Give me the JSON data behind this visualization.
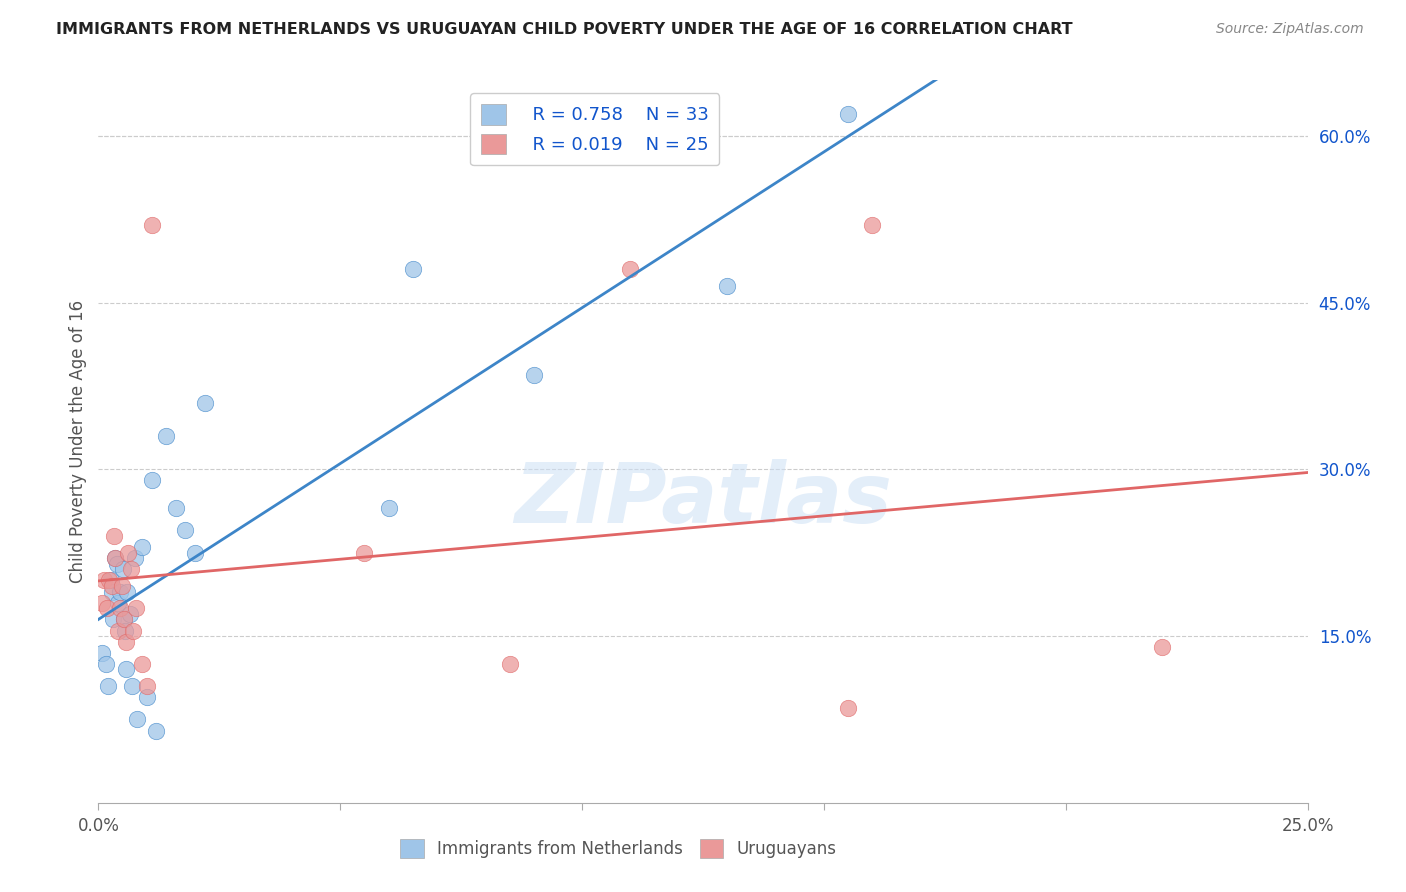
{
  "title": "IMMIGRANTS FROM NETHERLANDS VS URUGUAYAN CHILD POVERTY UNDER THE AGE OF 16 CORRELATION CHART",
  "source": "Source: ZipAtlas.com",
  "ylabel": "Child Poverty Under the Age of 16",
  "xlim": [
    0.0,
    0.25
  ],
  "ylim": [
    0.0,
    0.65
  ],
  "x_ticks": [
    0.0,
    0.05,
    0.1,
    0.15,
    0.2,
    0.25
  ],
  "x_tick_labels": [
    "0.0%",
    "",
    "",
    "",
    "",
    "25.0%"
  ],
  "y_ticks_right": [
    0.15,
    0.3,
    0.45,
    0.6
  ],
  "y_tick_labels_right": [
    "15.0%",
    "30.0%",
    "45.0%",
    "60.0%"
  ],
  "blue_color": "#9fc5e8",
  "pink_color": "#ea9999",
  "blue_line_color": "#3d85c8",
  "pink_line_color": "#e06666",
  "legend_text_color": "#1155cc",
  "watermark": "ZIPatlas",
  "legend_label1": "Immigrants from Netherlands",
  "legend_label2": "Uruguayans",
  "blue_x": [
    0.0008,
    0.0015,
    0.002,
    0.0025,
    0.0028,
    0.003,
    0.0035,
    0.0038,
    0.004,
    0.0045,
    0.005,
    0.0052,
    0.0055,
    0.0058,
    0.006,
    0.0065,
    0.007,
    0.0075,
    0.008,
    0.009,
    0.01,
    0.011,
    0.012,
    0.014,
    0.016,
    0.018,
    0.02,
    0.022,
    0.06,
    0.065,
    0.09,
    0.13,
    0.155
  ],
  "blue_y": [
    0.135,
    0.125,
    0.105,
    0.2,
    0.19,
    0.165,
    0.22,
    0.215,
    0.18,
    0.19,
    0.21,
    0.165,
    0.155,
    0.12,
    0.19,
    0.17,
    0.105,
    0.22,
    0.075,
    0.23,
    0.095,
    0.29,
    0.065,
    0.33,
    0.265,
    0.245,
    0.225,
    0.36,
    0.265,
    0.48,
    0.385,
    0.465,
    0.62
  ],
  "pink_x": [
    0.0008,
    0.0012,
    0.0018,
    0.0022,
    0.0028,
    0.0032,
    0.0035,
    0.004,
    0.0045,
    0.0048,
    0.0052,
    0.0058,
    0.0062,
    0.0068,
    0.0072,
    0.0078,
    0.009,
    0.01,
    0.011,
    0.055,
    0.085,
    0.11,
    0.155,
    0.16,
    0.22
  ],
  "pink_y": [
    0.18,
    0.2,
    0.175,
    0.2,
    0.195,
    0.24,
    0.22,
    0.155,
    0.175,
    0.195,
    0.165,
    0.145,
    0.225,
    0.21,
    0.155,
    0.175,
    0.125,
    0.105,
    0.52,
    0.225,
    0.125,
    0.48,
    0.085,
    0.52,
    0.14
  ],
  "background_color": "#ffffff",
  "grid_color": "#cccccc"
}
